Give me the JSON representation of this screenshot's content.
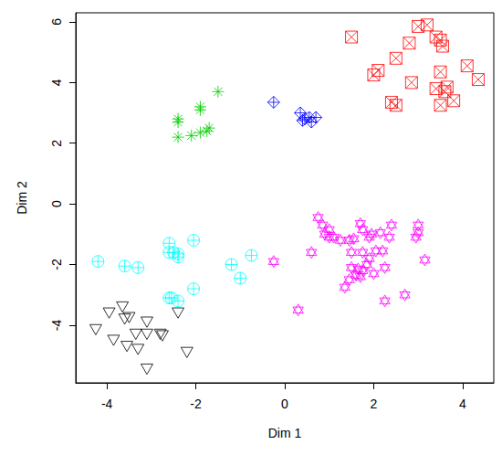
{
  "chart_data": {
    "type": "scatter",
    "x_label": "Dim 1",
    "y_label": "Dim 2",
    "xlim": [
      -4.7,
      4.7
    ],
    "ylim": [
      -5.9,
      6.3
    ],
    "xticks": [
      -4,
      -2,
      0,
      2,
      4
    ],
    "yticks": [
      -4,
      -2,
      0,
      2,
      4,
      6
    ],
    "grid": false,
    "series": [
      {
        "color": "#ff0000",
        "marker": "square_x",
        "x": [
          3.2,
          3.0,
          1.5,
          3.4,
          3.5,
          3.55,
          2.8,
          2.5,
          3.5,
          4.1,
          2.1,
          2.0,
          3.65,
          3.6,
          3.4,
          2.85,
          4.35,
          2.4,
          2.5,
          3.5,
          3.8
        ],
        "values": [
          5.9,
          5.85,
          5.5,
          5.5,
          5.4,
          5.2,
          5.3,
          4.8,
          4.35,
          4.55,
          4.4,
          4.25,
          3.85,
          3.7,
          3.8,
          4.0,
          4.1,
          3.35,
          3.25,
          3.25,
          3.4
        ]
      },
      {
        "color": "#0000ff",
        "marker": "diamond_plus",
        "x": [
          -0.25,
          0.35,
          0.45,
          0.55,
          0.7,
          0.4,
          0.6
        ],
        "values": [
          3.35,
          3.0,
          2.8,
          2.85,
          2.85,
          2.75,
          2.7
        ]
      },
      {
        "color": "#00cd00",
        "marker": "asterisk",
        "x": [
          -1.5,
          -2.4,
          -2.4,
          -1.9,
          -1.9,
          -2.4,
          -2.1,
          -1.9,
          -1.7,
          -1.75
        ],
        "values": [
          3.7,
          2.8,
          2.7,
          3.2,
          3.1,
          2.2,
          2.25,
          2.35,
          2.5,
          2.4
        ]
      },
      {
        "color": "#00ffff",
        "marker": "circle_plus",
        "x": [
          -4.2,
          -3.6,
          -3.3,
          -2.6,
          -2.6,
          -2.5,
          -2.4,
          -2.4,
          -2.05,
          -1.2,
          -0.75,
          -1.0,
          -2.05,
          -2.6,
          -2.55,
          -2.4
        ],
        "values": [
          -1.9,
          -2.05,
          -2.1,
          -1.3,
          -1.6,
          -1.6,
          -1.75,
          -1.65,
          -1.2,
          -2.0,
          -1.7,
          -2.45,
          -2.8,
          -3.1,
          -3.1,
          -3.2
        ]
      },
      {
        "color": "#000000",
        "marker": "triangle_down",
        "x": [
          -4.25,
          -3.95,
          -3.65,
          -3.6,
          -3.5,
          -3.85,
          -3.55,
          -3.3,
          -3.35,
          -3.1,
          -3.1,
          -2.8,
          -2.75,
          -2.4,
          -2.2,
          -3.1
        ],
        "values": [
          -4.15,
          -3.6,
          -3.4,
          -3.8,
          -3.75,
          -4.5,
          -4.7,
          -4.8,
          -4.3,
          -3.9,
          -4.3,
          -4.3,
          -4.35,
          -3.6,
          -4.9,
          -5.45
        ]
      },
      {
        "color": "#ff00ff",
        "marker": "hexagram",
        "x": [
          0.75,
          0.85,
          1.0,
          0.9,
          1.1,
          1.25,
          1.45,
          1.55,
          1.7,
          1.75,
          1.9,
          1.95,
          2.15,
          2.4,
          2.35,
          3.0,
          3.0,
          2.95,
          0.6,
          1.5,
          1.75,
          2.05,
          2.2,
          1.9,
          1.85,
          1.5,
          1.65,
          1.75,
          1.6,
          1.45,
          1.35,
          1.7,
          2.0,
          2.25,
          3.15,
          -0.25,
          2.25,
          2.7,
          0.3,
          1.0
        ],
        "values": [
          -0.45,
          -0.7,
          -0.85,
          -1.0,
          -1.1,
          -1.2,
          -1.2,
          -1.15,
          -0.65,
          -0.85,
          -1.1,
          -1.0,
          -0.95,
          -0.7,
          -1.1,
          -0.7,
          -0.95,
          -1.1,
          -1.6,
          -1.6,
          -1.6,
          -1.55,
          -1.55,
          -1.8,
          -2.0,
          -2.1,
          -2.15,
          -2.2,
          -2.35,
          -2.5,
          -2.75,
          -2.4,
          -2.3,
          -2.1,
          -1.85,
          -1.9,
          -3.2,
          -3.0,
          -3.5,
          -1.1
        ]
      }
    ]
  }
}
